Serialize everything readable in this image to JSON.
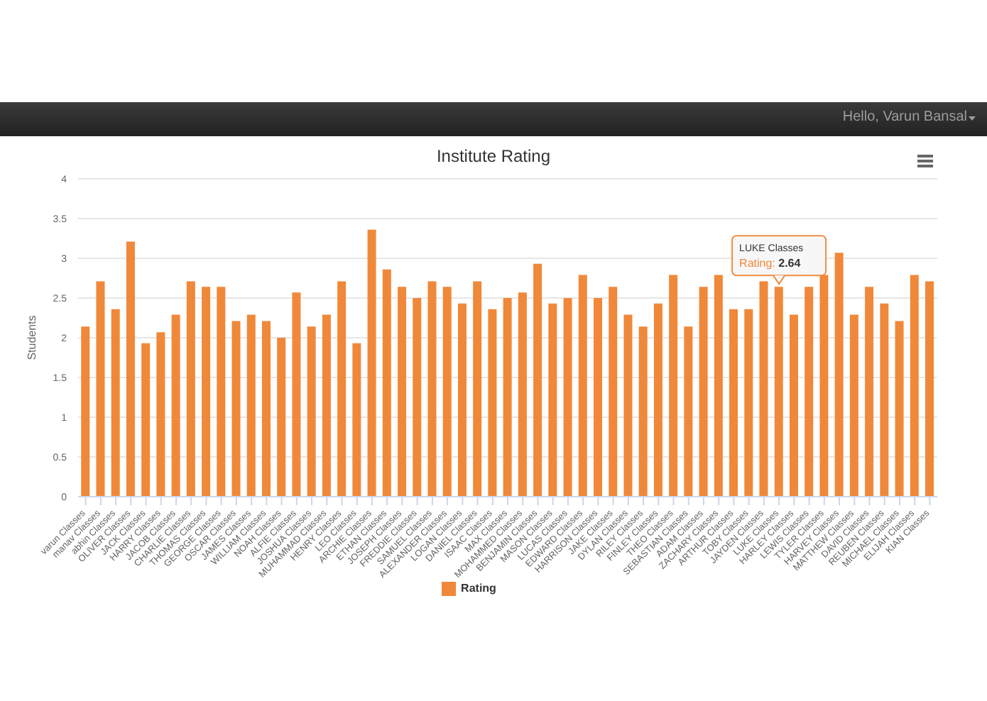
{
  "chart_data": {
    "type": "bar",
    "title": "Institute Rating",
    "ylabel": "Students",
    "categories": [
      "varun Classes",
      "manav Classes",
      "abhin Classes",
      "OLIVER Classes",
      "JACK Classes",
      "HARRY Classes",
      "JACOB Classes",
      "CHARLIE Classes",
      "THOMAS Classes",
      "GEORGE Classes",
      "OSCAR Classes",
      "JAMES Classes",
      "WILLIAM Classes",
      "NOAH Classes",
      "ALFIE Classes",
      "JOSHUA Classes",
      "MUHAMMAD Classes",
      "HENRY Classes",
      "LEO Classes",
      "ARCHIE Classes",
      "ETHAN Classes",
      "JOSEPH Classes",
      "FREDDIE Classes",
      "SAMUEL Classes",
      "ALEXANDER Classes",
      "LOGAN Classes",
      "DANIEL Classes",
      "ISAAC Classes",
      "MAX Classes",
      "MOHAMMED Classes",
      "BENJAMIN Classes",
      "MASON Classes",
      "LUCAS Classes",
      "EDWARD Classes",
      "HARRISON Classes",
      "JAKE Classes",
      "DYLAN Classes",
      "RILEY Classes",
      "FINLEY Classes",
      "THEO Classes",
      "SEBASTIAN Classes",
      "ADAM Classes",
      "ZACHARY Classes",
      "ARTHUR Classes",
      "TOBY Classes",
      "JAYDEN Classes",
      "LUKE Classes",
      "HARLEY Classes",
      "LEWIS Classes",
      "TYLER Classes",
      "HARVEY Classes",
      "MATTHEW Classes",
      "DAVID Classes",
      "REUBEN Classes",
      "MICHAEL Classes",
      "ELIJAH Classes",
      "KIAN Classes"
    ],
    "series": [
      {
        "name": "Rating",
        "color": "#f0883a",
        "values": [
          2.14,
          2.71,
          2.36,
          3.21,
          1.93,
          2.07,
          2.29,
          2.71,
          2.64,
          2.64,
          2.21,
          2.29,
          2.21,
          2.0,
          2.57,
          2.14,
          2.29,
          2.71,
          1.93,
          3.36,
          2.86,
          2.64,
          2.5,
          2.71,
          2.64,
          2.43,
          2.71,
          2.36,
          2.5,
          2.57,
          2.93,
          2.43,
          2.5,
          2.79,
          2.5,
          2.64,
          2.29,
          2.14,
          2.43,
          2.79,
          2.14,
          2.64,
          2.79,
          2.36,
          2.36,
          2.71,
          2.64,
          2.29,
          2.64,
          2.79,
          3.07,
          2.29,
          2.64,
          2.43,
          2.21,
          2.79,
          2.71
        ]
      }
    ],
    "ylim": [
      0,
      4
    ],
    "yticks": [
      0,
      0.5,
      1,
      1.5,
      2,
      2.5,
      3,
      3.5,
      4
    ],
    "grid": "y",
    "legend": "bottom",
    "annotations": [
      "Hello, Varun Bansal",
      {
        "text": "Rating: 2.64",
        "x": "LUKE Classes",
        "y": 2.64
      }
    ]
  }
}
